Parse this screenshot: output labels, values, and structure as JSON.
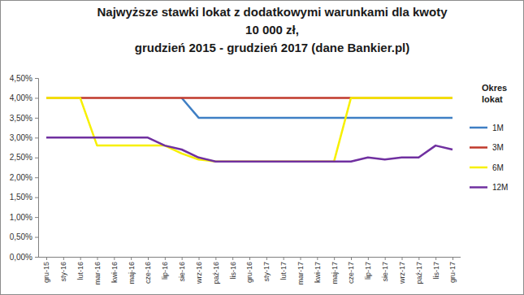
{
  "chart_data": {
    "type": "line",
    "title": [
      "Najwyższe stawki lokat z dodatkowymi warunkami dla kwoty",
      "10 000 zł,",
      "grudzień 2015 - grudzień 2017 (dane Bankier.pl)"
    ],
    "legend_title": "Okres lokat",
    "legend": "right",
    "grid": false,
    "categories": [
      "gru-15",
      "sty-16",
      "lut-16",
      "mar-16",
      "kwi-16",
      "maj-16",
      "cze-16",
      "lip-16",
      "sie-16",
      "wrz-16",
      "paź-16",
      "lis-16",
      "gru-16",
      "sty-17",
      "lut-17",
      "mar-17",
      "kwi-17",
      "maj-17",
      "cze-17",
      "lip-17",
      "sie-17",
      "wrz-17",
      "paź-17",
      "lis-17",
      "gru-17"
    ],
    "ylim": [
      0,
      4.5
    ],
    "yticks": [
      {
        "value": 0,
        "label": "0,00%"
      },
      {
        "value": 0.5,
        "label": "0,50%"
      },
      {
        "value": 1,
        "label": "1,00%"
      },
      {
        "value": 1.5,
        "label": "1,50%"
      },
      {
        "value": 2,
        "label": "2,00%"
      },
      {
        "value": 2.5,
        "label": "2,50%"
      },
      {
        "value": 3,
        "label": "3,00%"
      },
      {
        "value": 3.5,
        "label": "3,50%"
      },
      {
        "value": 4,
        "label": "4,00%"
      },
      {
        "value": 4.5,
        "label": "4,50%"
      }
    ],
    "series": [
      {
        "name": "1M",
        "color": "#3f7fc4",
        "values": [
          null,
          null,
          null,
          null,
          null,
          null,
          null,
          null,
          4.0,
          3.5,
          3.5,
          3.5,
          3.5,
          3.5,
          3.5,
          3.5,
          3.5,
          3.5,
          3.5,
          3.5,
          3.5,
          3.5,
          3.5,
          3.5,
          3.5
        ]
      },
      {
        "name": "3M",
        "color": "#c0392b",
        "values": [
          4.0,
          4.0,
          4.0,
          4.0,
          4.0,
          4.0,
          4.0,
          4.0,
          4.0,
          4.0,
          4.0,
          4.0,
          4.0,
          4.0,
          4.0,
          4.0,
          4.0,
          4.0,
          4.0,
          4.0,
          4.0,
          4.0,
          4.0,
          4.0,
          4.0
        ]
      },
      {
        "name": "6M",
        "color": "#f7f000",
        "values": [
          4.0,
          4.0,
          4.0,
          2.8,
          2.8,
          2.8,
          2.8,
          2.8,
          2.6,
          2.45,
          2.4,
          2.4,
          2.4,
          2.4,
          2.4,
          2.4,
          2.4,
          2.4,
          4.0,
          4.0,
          4.0,
          4.0,
          4.0,
          4.0,
          4.0
        ]
      },
      {
        "name": "12M",
        "color": "#7030a0",
        "values": [
          3.0,
          3.0,
          3.0,
          3.0,
          3.0,
          3.0,
          3.0,
          2.8,
          2.7,
          2.5,
          2.4,
          2.4,
          2.4,
          2.4,
          2.4,
          2.4,
          2.4,
          2.4,
          2.4,
          2.5,
          2.45,
          2.5,
          2.5,
          2.8,
          2.7
        ]
      }
    ]
  }
}
